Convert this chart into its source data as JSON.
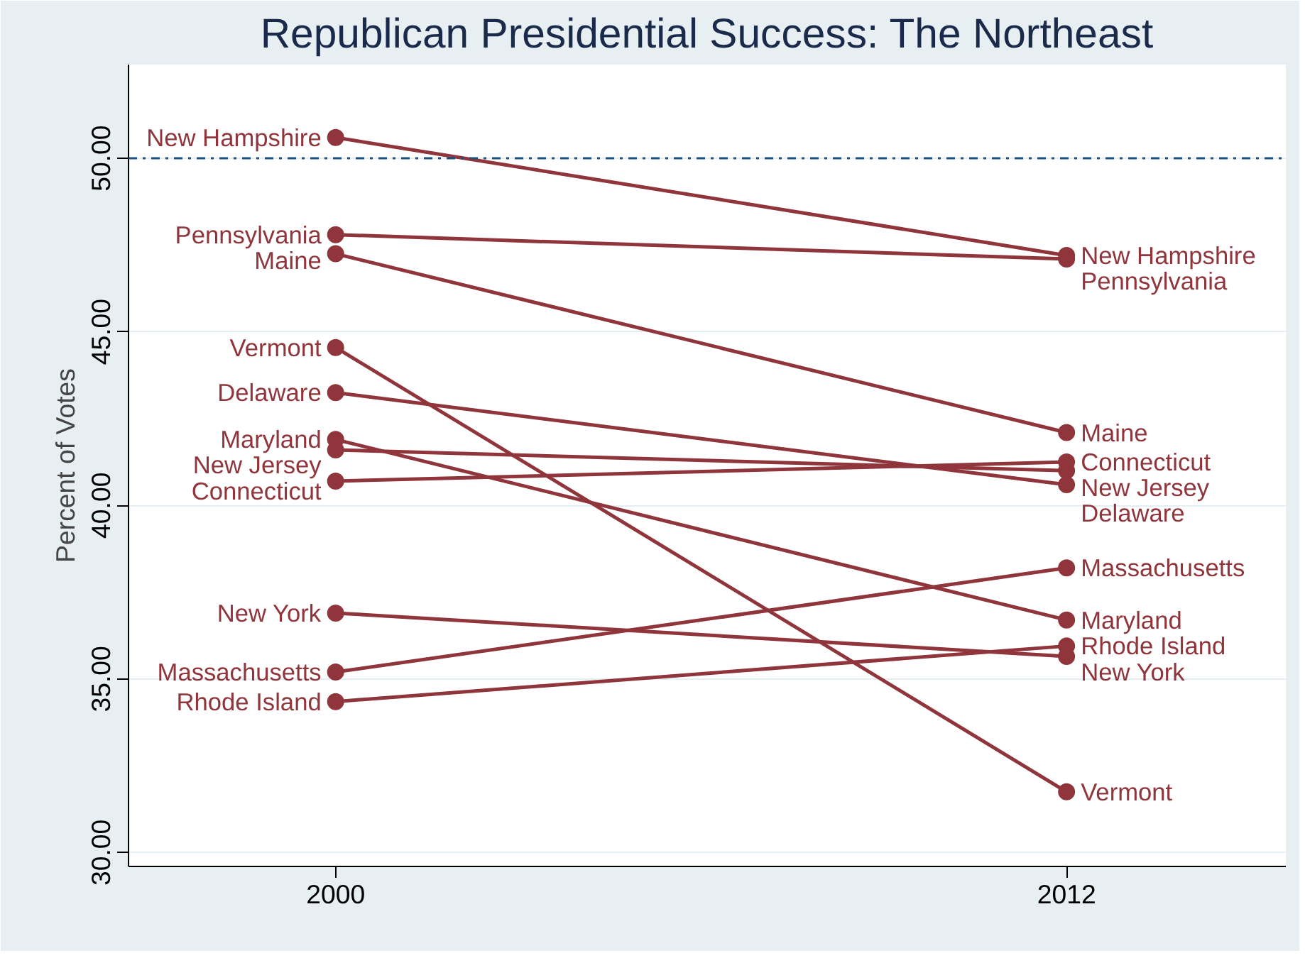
{
  "chart_data": {
    "type": "line",
    "title": "Republican Presidential Success: The Northeast",
    "ylabel": "Percent of Votes",
    "x": [
      2000,
      2012
    ],
    "xlim": [
      1996.6,
      2015.6
    ],
    "xticks": [
      2000,
      2012
    ],
    "ylim": [
      29.6,
      52.7
    ],
    "yticks": [
      {
        "value": 30,
        "label": "30.00"
      },
      {
        "value": 35,
        "label": "35.00"
      },
      {
        "value": 40,
        "label": "40.00"
      },
      {
        "value": 45,
        "label": "45.00"
      },
      {
        "value": 50,
        "label": "50.00"
      }
    ],
    "grid": "y",
    "marker": "circle",
    "line_style": "solid",
    "ref_lines": [
      {
        "axis": "y",
        "value": 50,
        "color": "#1f4e79",
        "line_style": "dashdot"
      }
    ],
    "series": [
      {
        "name": "New Hampshire",
        "color": "#90353b",
        "values": [
          50.6,
          47.2
        ]
      },
      {
        "name": "Pennsylvania",
        "color": "#90353b",
        "values": [
          47.8,
          47.1
        ]
      },
      {
        "name": "Maine",
        "color": "#90353b",
        "values": [
          47.25,
          42.1
        ]
      },
      {
        "name": "Vermont",
        "color": "#90353b",
        "values": [
          44.55,
          31.75
        ]
      },
      {
        "name": "Delaware",
        "color": "#90353b",
        "values": [
          43.25,
          40.6
        ]
      },
      {
        "name": "Maryland",
        "color": "#90353b",
        "values": [
          41.9,
          36.7
        ]
      },
      {
        "name": "New Jersey",
        "color": "#90353b",
        "values": [
          41.6,
          41.0
        ]
      },
      {
        "name": "Connecticut",
        "color": "#90353b",
        "values": [
          40.7,
          41.25
        ]
      },
      {
        "name": "New York",
        "color": "#90353b",
        "values": [
          36.9,
          35.65
        ]
      },
      {
        "name": "Massachusetts",
        "color": "#90353b",
        "values": [
          35.2,
          38.2
        ]
      },
      {
        "name": "Rhode Island",
        "color": "#90353b",
        "values": [
          34.35,
          35.95
        ]
      }
    ]
  }
}
